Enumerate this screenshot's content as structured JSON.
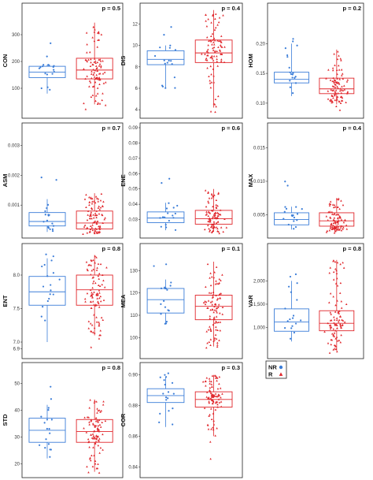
{
  "chart_data": [
    {
      "type": "box",
      "ylabel": "CON",
      "p_label": "p = 0.5",
      "ylim": [
        0,
        400
      ],
      "yticks": [
        "100",
        "200",
        "300"
      ],
      "ytick_values": [
        100,
        200,
        300
      ],
      "groups": [
        {
          "name": "NR",
          "color": "#3b7dd8",
          "q1": 140,
          "median": 160,
          "q3": 182,
          "whisker_low": 80,
          "whisker_high": 188
        },
        {
          "name": "R",
          "color": "#e0262b",
          "q1": 135,
          "median": 168,
          "q3": 212,
          "whisker_low": 40,
          "whisker_high": 345
        }
      ]
    },
    {
      "type": "box",
      "ylabel": "DIS",
      "p_label": "p = 0.4",
      "ylim": [
        3.5,
        13.5
      ],
      "yticks": [
        "4",
        "6",
        "8",
        "10",
        "12"
      ],
      "ytick_values": [
        4,
        6,
        8,
        10,
        12
      ],
      "groups": [
        {
          "name": "NR",
          "color": "#3b7dd8",
          "q1": 8.2,
          "median": 8.7,
          "q3": 9.5,
          "whisker_low": 6,
          "whisker_high": 10
        },
        {
          "name": "R",
          "color": "#e0262b",
          "q1": 8.4,
          "median": 9.3,
          "q3": 10.5,
          "whisker_low": 4.2,
          "whisker_high": 13.3
        }
      ]
    },
    {
      "type": "box",
      "ylabel": "HOM",
      "p_label": "p = 0.2",
      "ylim": [
        0.08,
        0.26
      ],
      "yticks": [
        "0.10",
        "0.15",
        "0.20"
      ],
      "ytick_values": [
        0.1,
        0.15,
        0.2
      ],
      "groups": [
        {
          "name": "NR",
          "color": "#3b7dd8",
          "q1": 0.134,
          "median": 0.14,
          "q3": 0.152,
          "whisker_low": 0.112,
          "whisker_high": 0.2
        },
        {
          "name": "R",
          "color": "#e0262b",
          "q1": 0.116,
          "median": 0.124,
          "q3": 0.142,
          "whisker_low": 0.098,
          "whisker_high": 0.19
        }
      ]
    },
    {
      "type": "box",
      "ylabel": "ASM",
      "p_label": "p = 0.7",
      "ylim": [
        0,
        0.0036
      ],
      "yticks": [
        "0.001",
        "0.002",
        "0.003"
      ],
      "ytick_values": [
        0.001,
        0.002,
        0.003
      ],
      "groups": [
        {
          "name": "NR",
          "color": "#3b7dd8",
          "q1": 0.0003,
          "median": 0.00045,
          "q3": 0.00075,
          "whisker_low": 0.0001,
          "whisker_high": 0.0012
        },
        {
          "name": "R",
          "color": "#e0262b",
          "q1": 0.0002,
          "median": 0.0004,
          "q3": 0.0008,
          "whisker_low": 5e-05,
          "whisker_high": 0.0014
        }
      ]
    },
    {
      "type": "box",
      "ylabel": "ENE",
      "p_label": "p = 0.6",
      "ylim": [
        0.02,
        0.09
      ],
      "yticks": [
        "0.03",
        "0.04",
        "0.05",
        "0.06",
        "0.07",
        "0.08",
        "0.09"
      ],
      "ytick_values": [
        0.03,
        0.04,
        0.05,
        0.06,
        0.07,
        0.08,
        0.09
      ],
      "groups": [
        {
          "name": "NR",
          "color": "#3b7dd8",
          "q1": 0.028,
          "median": 0.031,
          "q3": 0.035,
          "whisker_low": 0.023,
          "whisker_high": 0.041
        },
        {
          "name": "R",
          "color": "#e0262b",
          "q1": 0.027,
          "median": 0.0305,
          "q3": 0.036,
          "whisker_low": 0.022,
          "whisker_high": 0.05
        }
      ]
    },
    {
      "type": "box",
      "ylabel": "MAX",
      "p_label": "p = 0.4",
      "ylim": [
        0.002,
        0.018
      ],
      "yticks": [
        "0.005",
        "0.010",
        "0.015"
      ],
      "ytick_values": [
        0.005,
        0.01,
        0.015
      ],
      "groups": [
        {
          "name": "NR",
          "color": "#3b7dd8",
          "q1": 0.0035,
          "median": 0.0043,
          "q3": 0.0053,
          "whisker_low": 0.0028,
          "whisker_high": 0.0062
        },
        {
          "name": "R",
          "color": "#e0262b",
          "q1": 0.0033,
          "median": 0.0041,
          "q3": 0.0053,
          "whisker_low": 0.0025,
          "whisker_high": 0.0075
        }
      ]
    },
    {
      "type": "box",
      "ylabel": "ENT",
      "p_label": "p = 0.8",
      "ylim": [
        6.8,
        8.4
      ],
      "yticks": [
        "6.9",
        "7.0",
        "7.5",
        "8.0"
      ],
      "ytick_values": [
        6.9,
        7.0,
        7.5,
        8.0
      ],
      "groups": [
        {
          "name": "NR",
          "color": "#3b7dd8",
          "q1": 7.55,
          "median": 7.75,
          "q3": 7.98,
          "whisker_low": 7.0,
          "whisker_high": 8.25
        },
        {
          "name": "R",
          "color": "#e0262b",
          "q1": 7.55,
          "median": 7.78,
          "q3": 8.0,
          "whisker_low": 7.1,
          "whisker_high": 8.3
        }
      ]
    },
    {
      "type": "box",
      "ylabel": "MEA",
      "p_label": "p = 0.1",
      "ylim": [
        92,
        140
      ],
      "yticks": [
        "100",
        "110",
        "120",
        "130"
      ],
      "ytick_values": [
        100,
        110,
        120,
        130
      ],
      "groups": [
        {
          "name": "NR",
          "color": "#3b7dd8",
          "q1": 111,
          "median": 117,
          "q3": 122,
          "whisker_low": 106,
          "whisker_high": 126
        },
        {
          "name": "R",
          "color": "#e0262b",
          "q1": 108,
          "median": 114,
          "q3": 119,
          "whisker_low": 96,
          "whisker_high": 134
        }
      ]
    },
    {
      "type": "box",
      "ylabel": "VAR",
      "p_label": "p = 0.8",
      "ylim": [
        400,
        2700
      ],
      "yticks": [
        "1,000",
        "1,500",
        "2,000"
      ],
      "ytick_values": [
        1000,
        1500,
        2000
      ],
      "groups": [
        {
          "name": "NR",
          "color": "#3b7dd8",
          "q1": 920,
          "median": 1120,
          "q3": 1400,
          "whisker_low": 700,
          "whisker_high": 2000
        },
        {
          "name": "R",
          "color": "#e0262b",
          "q1": 930,
          "median": 1090,
          "q3": 1360,
          "whisker_low": 500,
          "whisker_high": 2450
        }
      ]
    },
    {
      "type": "box",
      "ylabel": "STD",
      "p_label": "p = 0.8",
      "ylim": [
        16,
        56
      ],
      "yticks": [
        "20",
        "30",
        "40",
        "50"
      ],
      "ytick_values": [
        20,
        30,
        40,
        50
      ],
      "groups": [
        {
          "name": "NR",
          "color": "#3b7dd8",
          "q1": 28,
          "median": 32.5,
          "q3": 37,
          "whisker_low": 22,
          "whisker_high": 42
        },
        {
          "name": "R",
          "color": "#e0262b",
          "q1": 28,
          "median": 32,
          "q3": 36.5,
          "whisker_low": 17,
          "whisker_high": 44
        }
      ]
    },
    {
      "type": "box",
      "ylabel": "COR",
      "p_label": "p = 0.3",
      "ylim": [
        0.835,
        0.905
      ],
      "yticks": [
        "0.84",
        "0.86",
        "0.88",
        "0.90"
      ],
      "ytick_values": [
        0.84,
        0.86,
        0.88,
        0.9
      ],
      "groups": [
        {
          "name": "NR",
          "color": "#3b7dd8",
          "q1": 0.882,
          "median": 0.8865,
          "q3": 0.891,
          "whisker_low": 0.866,
          "whisker_high": 0.899
        },
        {
          "name": "R",
          "color": "#e0262b",
          "q1": 0.879,
          "median": 0.884,
          "q3": 0.889,
          "whisker_low": 0.86,
          "whisker_high": 0.9
        }
      ]
    }
  ],
  "legend": {
    "items": [
      {
        "label": "NR",
        "color": "#3b7dd8",
        "marker": "circle"
      },
      {
        "label": "R",
        "color": "#e0262b",
        "marker": "triangle"
      }
    ]
  }
}
